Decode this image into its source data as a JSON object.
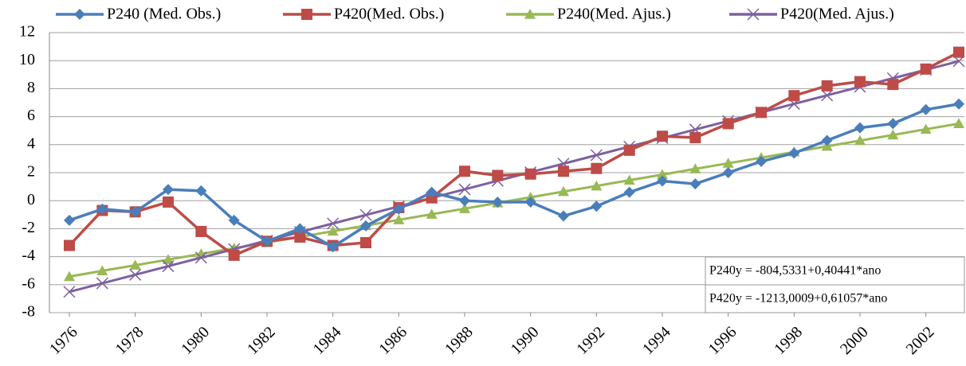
{
  "chart_data": {
    "type": "line",
    "x": [
      1976,
      1977,
      1978,
      1979,
      1980,
      1981,
      1982,
      1983,
      1984,
      1985,
      1986,
      1987,
      1988,
      1989,
      1990,
      1991,
      1992,
      1993,
      1994,
      1995,
      1996,
      1997,
      1998,
      1999,
      2000,
      2001,
      2002,
      2003
    ],
    "xlim": [
      1976,
      2003
    ],
    "xticks": [
      1976,
      1978,
      1980,
      1982,
      1984,
      1986,
      1988,
      1990,
      1992,
      1994,
      1996,
      1998,
      2000,
      2002
    ],
    "ylim": [
      -8,
      12
    ],
    "yticks": [
      -8,
      -6,
      -4,
      -2,
      0,
      2,
      4,
      6,
      8,
      10,
      12
    ],
    "grid": true,
    "legend": "top",
    "series": [
      {
        "name": "P240 (Med. Obs.)",
        "color": "#4a7ebb",
        "marker": "diamond",
        "values": [
          -1.4,
          -0.6,
          -0.8,
          0.8,
          0.7,
          -1.4,
          -2.9,
          -2.0,
          -3.3,
          -1.8,
          -0.6,
          0.6,
          0.0,
          -0.1,
          -0.1,
          -1.1,
          -0.4,
          0.6,
          1.4,
          1.2,
          2.0,
          2.8,
          3.4,
          4.3,
          5.2,
          5.5,
          6.5,
          6.9
        ]
      },
      {
        "name": "P420(Med. Obs.)",
        "color": "#be4b48",
        "marker": "square",
        "values": [
          -3.2,
          -0.7,
          -0.8,
          -0.1,
          -2.2,
          -3.9,
          -2.9,
          -2.6,
          -3.2,
          -3.0,
          -0.5,
          0.2,
          2.1,
          1.8,
          1.9,
          2.1,
          2.3,
          3.6,
          4.6,
          4.5,
          5.5,
          6.3,
          7.5,
          8.2,
          8.5,
          8.3,
          9.4,
          10.6
        ]
      },
      {
        "name": "P240(Med. Ajus.)",
        "color": "#98b954",
        "marker": "triangle",
        "values": [
          -5.42,
          -5.01,
          -4.61,
          -4.21,
          -3.8,
          -3.4,
          -2.99,
          -2.59,
          -2.18,
          -1.78,
          -1.37,
          -0.97,
          -0.57,
          -0.16,
          0.24,
          0.65,
          1.05,
          1.46,
          1.86,
          2.27,
          2.67,
          3.07,
          3.48,
          3.88,
          4.29,
          4.69,
          5.1,
          5.5
        ]
      },
      {
        "name": "P420(Med. Ajus.)",
        "color": "#7d60a0",
        "marker": "x",
        "values": [
          -6.51,
          -5.9,
          -5.29,
          -4.68,
          -4.07,
          -3.46,
          -2.85,
          -2.24,
          -1.63,
          -1.02,
          -0.41,
          0.2,
          0.81,
          1.42,
          2.03,
          2.64,
          3.25,
          3.86,
          4.47,
          5.08,
          5.69,
          6.3,
          6.91,
          7.52,
          8.13,
          8.74,
          9.35,
          9.96
        ]
      }
    ],
    "annotations": [
      "P240y = -804,5331+0,40441*ano",
      "P420y = -1213,0009+0,61057*ano"
    ]
  }
}
